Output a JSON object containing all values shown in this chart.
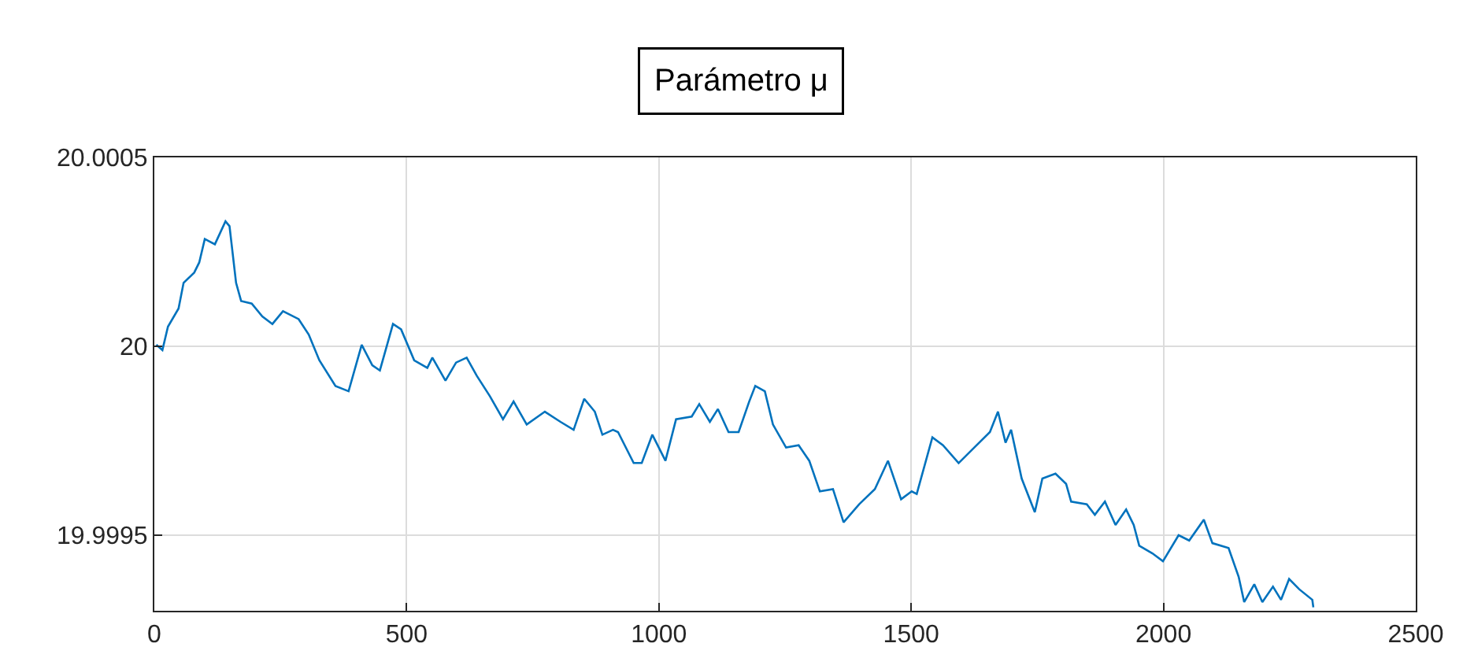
{
  "chart_data": {
    "type": "line",
    "title": "Parámetro μ",
    "x": [
      4,
      16,
      27,
      48,
      58,
      79,
      89,
      100,
      120,
      141,
      149,
      162,
      172,
      193,
      214,
      234,
      255,
      286,
      306,
      327,
      359,
      385,
      411,
      432,
      447,
      473,
      489,
      515,
      541,
      551,
      577,
      598,
      619,
      639,
      665,
      691,
      712,
      738,
      774,
      805,
      831,
      852,
      873,
      888,
      909,
      919,
      950,
      966,
      987,
      1013,
      1034,
      1065,
      1080,
      1101,
      1117,
      1138,
      1158,
      1179,
      1191,
      1210,
      1226,
      1252,
      1277,
      1298,
      1319,
      1345,
      1366,
      1397,
      1428,
      1454,
      1480,
      1501,
      1511,
      1542,
      1563,
      1594,
      1625,
      1656,
      1672,
      1687,
      1698,
      1719,
      1745,
      1760,
      1786,
      1807,
      1817,
      1848,
      1864,
      1884,
      1905,
      1926,
      1941,
      1952,
      1978,
      1999,
      2030,
      2051,
      2080,
      2097,
      2129,
      2149,
      2160,
      2180,
      2196,
      2217,
      2233,
      2249,
      2269,
      2295,
      2297
    ],
    "series": [
      {
        "color": "#0072bd",
        "values": [
          20.000004,
          19.99999,
          20.000052,
          20.0001,
          20.000168,
          20.000195,
          20.000222,
          20.000284,
          20.00027,
          20.000331,
          20.000318,
          20.000168,
          20.00012,
          20.000113,
          20.000079,
          20.000059,
          20.000093,
          20.000072,
          20.000031,
          19.999963,
          19.999895,
          19.999881,
          20.000004,
          19.99995,
          19.999936,
          20.000059,
          20.000045,
          19.999963,
          19.999943,
          19.99997,
          19.999909,
          19.999957,
          19.99997,
          19.999922,
          19.999868,
          19.999807,
          19.999854,
          19.999793,
          19.999827,
          19.9998,
          19.999779,
          19.999861,
          19.999827,
          19.999766,
          19.999779,
          19.999773,
          19.999691,
          19.999691,
          19.999766,
          19.999697,
          19.999807,
          19.999814,
          19.999847,
          19.9998,
          19.999834,
          19.999773,
          19.999773,
          19.999854,
          19.999895,
          19.999881,
          19.999793,
          19.999732,
          19.999738,
          19.999697,
          19.999616,
          19.999622,
          19.999534,
          19.999582,
          19.999622,
          19.999697,
          19.999595,
          19.999616,
          19.999609,
          19.999759,
          19.999738,
          19.999691,
          19.999732,
          19.999773,
          19.999827,
          19.999745,
          19.999779,
          19.99965,
          19.999561,
          19.99965,
          19.999663,
          19.999636,
          19.999589,
          19.999582,
          19.999554,
          19.999589,
          19.999527,
          19.999568,
          19.999527,
          19.999472,
          19.999452,
          19.999431,
          19.9995,
          19.999486,
          19.999541,
          19.999479,
          19.999466,
          19.99939,
          19.999323,
          19.99937,
          19.999323,
          19.999364,
          19.999329,
          19.999384,
          19.999357,
          19.999329,
          19.999309
        ]
      }
    ],
    "xlim": [
      0,
      2500
    ],
    "xticks": [
      0,
      500,
      1000,
      1500,
      2000,
      2500
    ],
    "ylim": [
      19.9993,
      20.0005
    ],
    "yticks": [
      19.9995,
      20,
      20.0005
    ],
    "grid": true,
    "marker": "none",
    "line_style": "solid"
  }
}
